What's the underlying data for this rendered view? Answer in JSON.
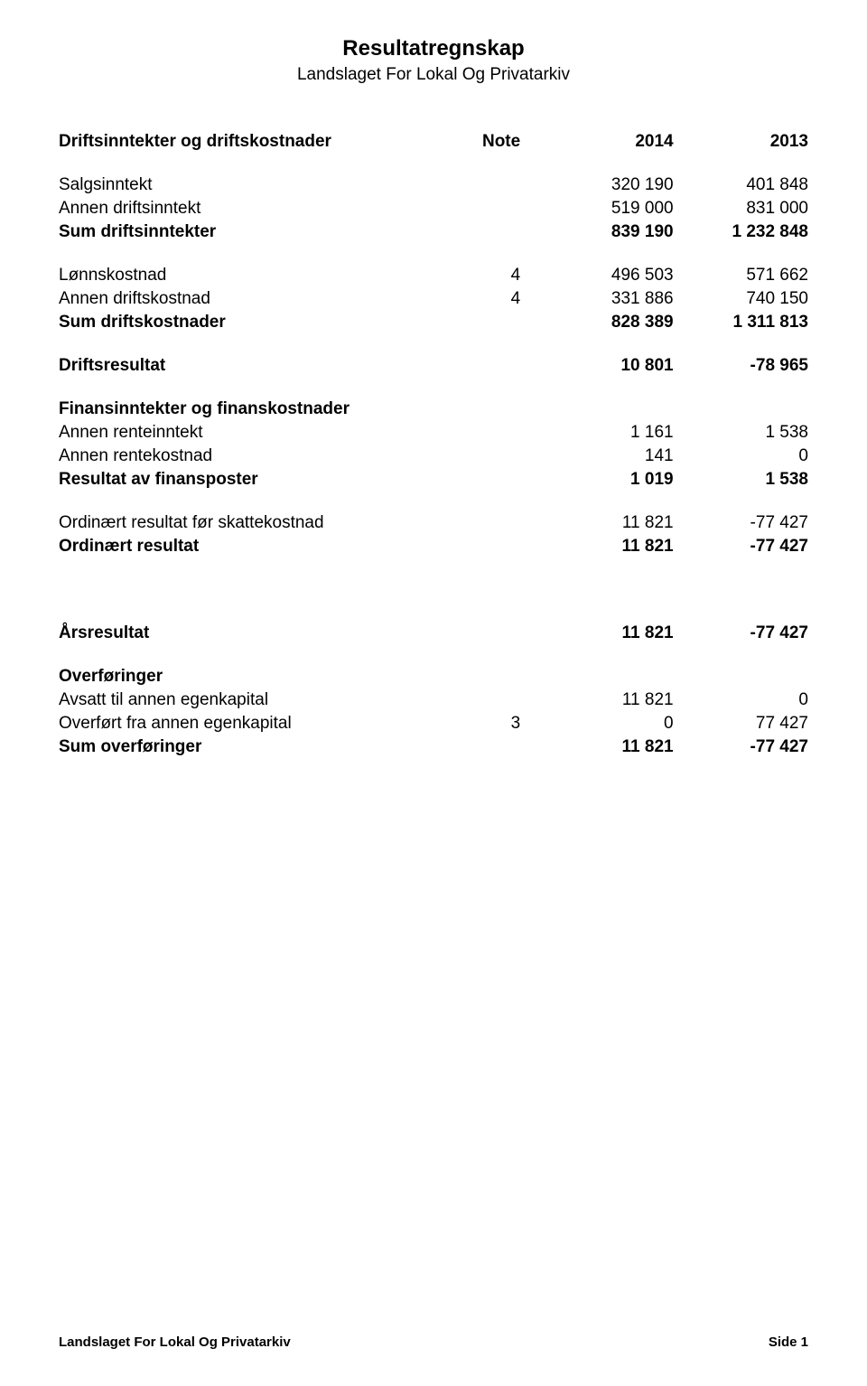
{
  "page": {
    "title": "Resultatregnskap",
    "subtitle": "Landslaget For Lokal Og Privatarkiv",
    "footer_left": "Landslaget For Lokal Og Privatarkiv",
    "footer_right": "Side 1"
  },
  "header": {
    "col_label": "Driftsinntekter og driftskostnader",
    "col_note": "Note",
    "col_y1": "2014",
    "col_y2": "2013"
  },
  "rows": [
    {
      "key": "salgsinntekt",
      "label": "Salgsinntekt",
      "note": "",
      "v1": "320 190",
      "v2": "401 848",
      "bold": false
    },
    {
      "key": "annen_driftsinntekt",
      "label": "Annen driftsinntekt",
      "note": "",
      "v1": "519 000",
      "v2": "831 000",
      "bold": false
    },
    {
      "key": "sum_driftsinntekter",
      "label": "Sum driftsinntekter",
      "note": "",
      "v1": "839 190",
      "v2": "1 232 848",
      "bold": true
    },
    {
      "spacer": true
    },
    {
      "key": "lonnskostnad",
      "label": "Lønnskostnad",
      "note": "4",
      "v1": "496 503",
      "v2": "571 662",
      "bold": false
    },
    {
      "key": "annen_driftskostnad",
      "label": "Annen driftskostnad",
      "note": "4",
      "v1": "331 886",
      "v2": "740 150",
      "bold": false
    },
    {
      "key": "sum_driftskostnader",
      "label": "Sum driftskostnader",
      "note": "",
      "v1": "828 389",
      "v2": "1 311 813",
      "bold": true
    },
    {
      "spacer": true
    },
    {
      "key": "driftsresultat",
      "label": "Driftsresultat",
      "note": "",
      "v1": "10 801",
      "v2": "-78 965",
      "bold": true
    },
    {
      "spacer": true
    },
    {
      "key": "finans_header",
      "label": "Finansinntekter og finanskostnader",
      "note": "",
      "v1": "",
      "v2": "",
      "bold": true
    },
    {
      "key": "annen_renteinntekt",
      "label": "Annen renteinntekt",
      "note": "",
      "v1": "1 161",
      "v2": "1 538",
      "bold": false
    },
    {
      "key": "annen_rentekostnad",
      "label": "Annen rentekostnad",
      "note": "",
      "v1": "141",
      "v2": "0",
      "bold": false
    },
    {
      "key": "resultat_finansposter",
      "label": "Resultat av finansposter",
      "note": "",
      "v1": "1 019",
      "v2": "1 538",
      "bold": true
    },
    {
      "spacer": true
    },
    {
      "key": "ord_resultat_skatt",
      "label": "Ordinært resultat før skattekostnad",
      "note": "",
      "v1": "11 821",
      "v2": "-77 427",
      "bold": false
    },
    {
      "key": "ord_resultat",
      "label": "Ordinært resultat",
      "note": "",
      "v1": "11 821",
      "v2": "-77 427",
      "bold": true
    },
    {
      "bigspacer": true
    },
    {
      "key": "arsresultat",
      "label": "Årsresultat",
      "note": "",
      "v1": "11 821",
      "v2": "-77 427",
      "bold": true
    },
    {
      "spacer": true
    },
    {
      "key": "overforinger",
      "label": "Overføringer",
      "note": "",
      "v1": "",
      "v2": "",
      "bold": true
    },
    {
      "key": "avsatt_egenkapital",
      "label": "Avsatt til annen egenkapital",
      "note": "",
      "v1": "11 821",
      "v2": "0",
      "bold": false
    },
    {
      "key": "overfort_egenkapital",
      "label": "Overført fra annen egenkapital",
      "note": "3",
      "v1": "0",
      "v2": "77 427",
      "bold": false
    },
    {
      "key": "sum_overforinger",
      "label": "Sum overføringer",
      "note": "",
      "v1": "11 821",
      "v2": "-77 427",
      "bold": true
    }
  ]
}
